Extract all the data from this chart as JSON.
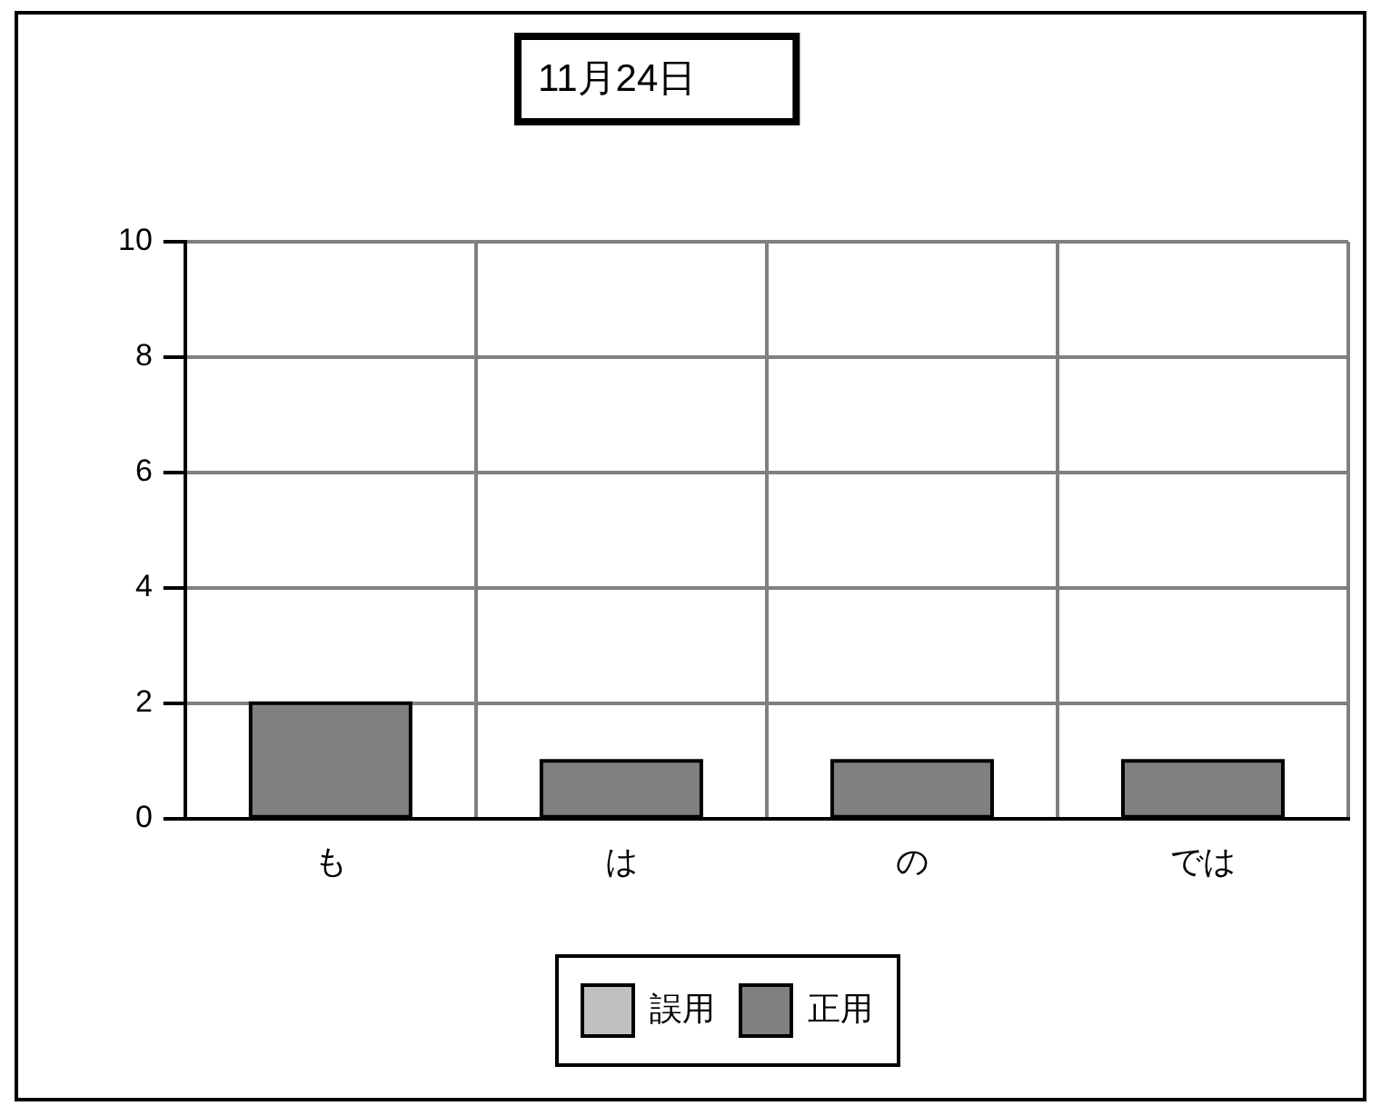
{
  "chart_data": {
    "type": "bar",
    "title": "11月24日",
    "categories": [
      "も",
      "は",
      "の",
      "では"
    ],
    "series": [
      {
        "name": "誤用",
        "color": "#c0c0c0",
        "values": [
          0,
          0,
          0,
          0
        ]
      },
      {
        "name": "正用",
        "color": "#808080",
        "values": [
          2,
          1,
          1,
          1
        ]
      }
    ],
    "stacked": true,
    "ylim": [
      0,
      10
    ],
    "yticks": [
      0,
      2,
      4,
      6,
      8,
      10
    ],
    "grid": true,
    "legend": "bottom"
  }
}
